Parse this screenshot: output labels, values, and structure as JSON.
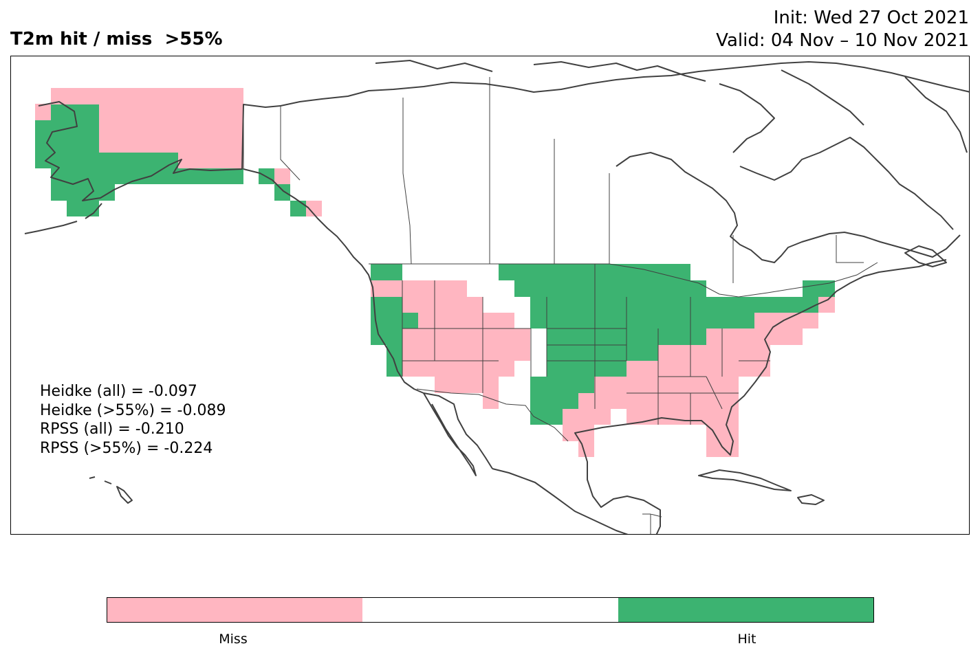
{
  "header": {
    "title": "T2m hit / miss  >55%",
    "init": "Init: Wed 27 Oct 2021",
    "valid": "Valid: 04 Nov – 10 Nov 2021"
  },
  "scores": {
    "heidke_all": "Heidke (all) = -0.097",
    "heidke_55": "Heidke (>55%) = -0.089",
    "rpss_all": "RPSS (all) = -0.210",
    "rpss_55": "RPSS (>55%) = -0.224"
  },
  "colorbar": {
    "miss_label": "Miss",
    "hit_label": "Hit",
    "colors": {
      "miss": "#ffb6c1",
      "neutral": "#ffffff",
      "hit": "#3cb371"
    }
  },
  "map": {
    "coast_color": "#404040",
    "border_color": "#404040"
  }
}
